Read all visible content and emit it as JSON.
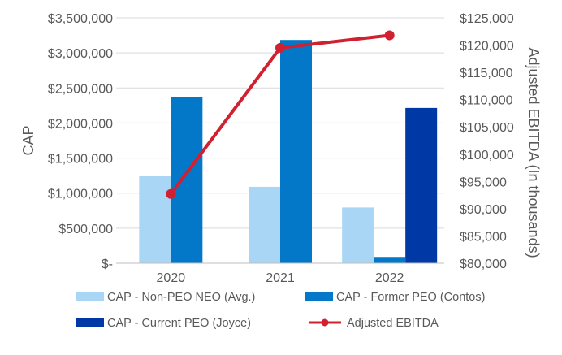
{
  "chart_data": {
    "type": "bar",
    "categories": [
      "2020",
      "2021",
      "2022"
    ],
    "ylabel": "CAP",
    "y2label": "Adjusted EBITDA (In thousands)",
    "ylim": [
      0,
      3500000
    ],
    "y2lim": [
      80000,
      125000
    ],
    "yticks": [
      "$-",
      "$500,000",
      "$1,000,000",
      "$1,500,000",
      "$2,000,000",
      "$2,500,000",
      "$3,000,000",
      "$3,500,000"
    ],
    "y2ticks": [
      "$80,000",
      "$85,000",
      "$90,000",
      "$95,000",
      "$100,000",
      "$105,000",
      "$110,000",
      "$115,000",
      "$120,000",
      "$125,000"
    ],
    "grid": true,
    "series": [
      {
        "name": "CAP - Non-PEO NEO (Avg.)",
        "axis": "left",
        "kind": "bar",
        "color": "#A9D6F5",
        "values": [
          1240000,
          1090000,
          795000
        ]
      },
      {
        "name": "CAP - Former PEO (Contos)",
        "axis": "left",
        "kind": "bar",
        "color": "#0478C8",
        "values": [
          2370000,
          3185000,
          90000
        ]
      },
      {
        "name": "CAP - Current PEO (Joyce)",
        "axis": "left",
        "kind": "bar",
        "color": "#0039A6",
        "values": [
          null,
          null,
          2215000
        ]
      },
      {
        "name": "Adjusted EBITDA",
        "axis": "right",
        "kind": "line",
        "color": "#D1202F",
        "values": [
          92700,
          119500,
          121800
        ]
      }
    ]
  }
}
